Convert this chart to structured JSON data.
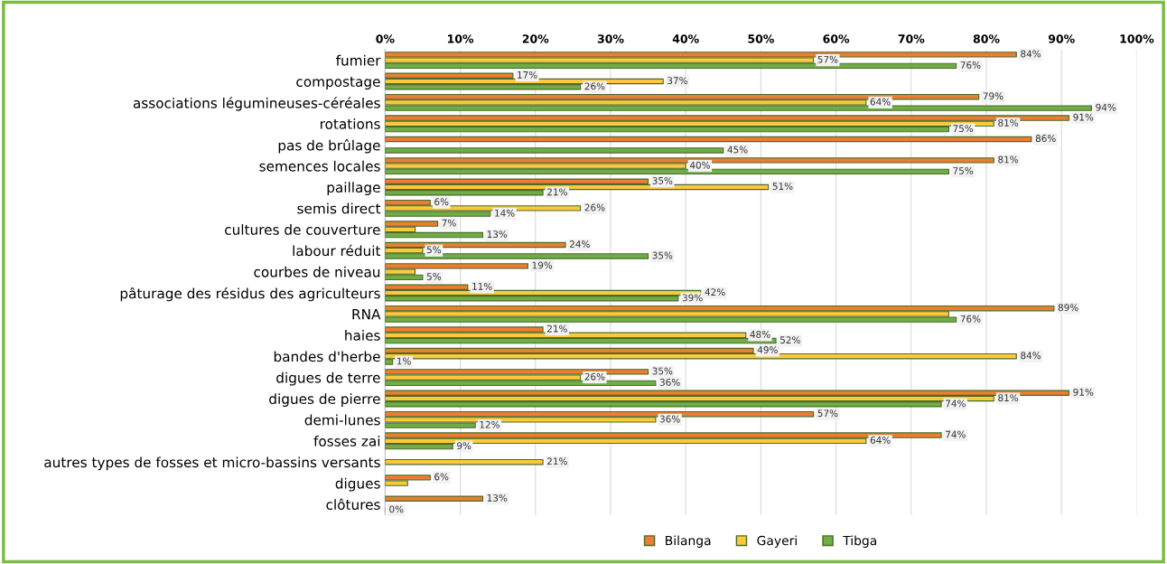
{
  "chart_data": {
    "type": "bar",
    "orientation": "horizontal",
    "categories": [
      "fumier",
      "compostage",
      "associations légumineuses-céréales",
      "rotations",
      "pas de brûlage",
      "semences locales",
      "paillage",
      "semis direct",
      "cultures de couverture",
      "labour réduit",
      "courbes de niveau",
      "pâturage des résidus des agriculteurs",
      "RNA",
      "haies",
      "bandes d'herbe",
      "digues de terre",
      "digues de pierre",
      "demi-lunes",
      "fosses zai",
      "autres types de fosses et micro-bassins versants",
      "digues",
      "clôtures"
    ],
    "series": [
      {
        "name": "Bilanga",
        "color": "#ed7d31",
        "values": [
          84,
          17,
          79,
          91,
          86,
          81,
          35,
          6,
          7,
          24,
          19,
          11,
          89,
          21,
          49,
          35,
          91,
          57,
          74,
          null,
          6,
          13
        ],
        "value_labels": [
          "84%",
          "17%",
          "79%",
          "91%",
          "86%",
          "81%",
          "35%",
          "6%",
          "7%",
          "24%",
          "19%",
          "11%",
          "89%",
          "21%",
          "49%",
          "35%",
          "91%",
          "57%",
          "74%",
          null,
          "6%",
          "13%"
        ]
      },
      {
        "name": "Gayeri",
        "color": "#fcc93a",
        "values": [
          57,
          37,
          64,
          81,
          null,
          40,
          51,
          26,
          4,
          5,
          4,
          42,
          75,
          48,
          84,
          26,
          81,
          36,
          64,
          21,
          3,
          null
        ],
        "value_labels": [
          "57%",
          "37%",
          "64%",
          "81%",
          null,
          "40%",
          "51%",
          "26%",
          null,
          "5%",
          null,
          "42%",
          null,
          "48%",
          "84%",
          "26%",
          "81%",
          "36%",
          "64%",
          "21%",
          null,
          null
        ]
      },
      {
        "name": "Tibga",
        "color": "#70ad47",
        "values": [
          76,
          26,
          94,
          75,
          45,
          75,
          21,
          14,
          13,
          35,
          5,
          39,
          76,
          52,
          1,
          36,
          74,
          12,
          9,
          null,
          null,
          0
        ],
        "value_labels": [
          "76%",
          "26%",
          "94%",
          "75%",
          "45%",
          "75%",
          "21%",
          "14%",
          "13%",
          "35%",
          "5%",
          "39%",
          "76%",
          "52%",
          "1%",
          "36%",
          "74%",
          "12%",
          "9%",
          null,
          null,
          "0%"
        ]
      }
    ],
    "xlim": [
      0,
      100
    ],
    "xticks": [
      {
        "value": 0,
        "label": "0%"
      },
      {
        "value": 10,
        "label": "10%"
      },
      {
        "value": 20,
        "label": "20%"
      },
      {
        "value": 30,
        "label": "30%"
      },
      {
        "value": 40,
        "label": "40%"
      },
      {
        "value": 50,
        "label": "50%"
      },
      {
        "value": 60,
        "label": "60%"
      },
      {
        "value": 70,
        "label": "70%"
      },
      {
        "value": 80,
        "label": "80%"
      },
      {
        "value": 90,
        "label": "90%"
      },
      {
        "value": 100,
        "label": "100%"
      }
    ],
    "grid": "x",
    "legend": "bottom"
  }
}
